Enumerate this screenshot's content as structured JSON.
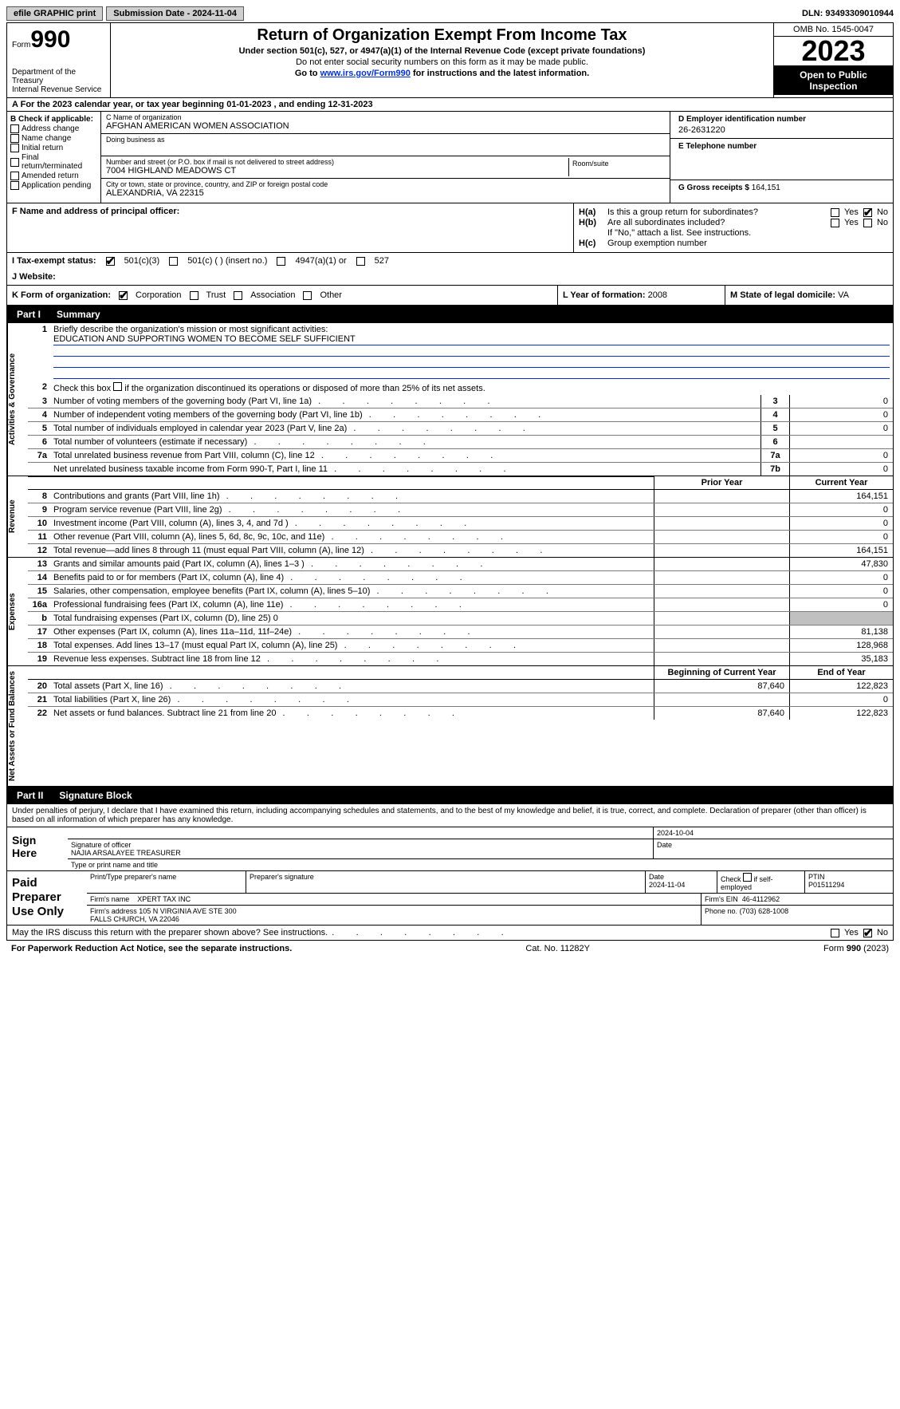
{
  "topbar": {
    "efile": "efile GRAPHIC print",
    "submission": "Submission Date - 2024-11-04",
    "dln": "DLN: 93493309010944"
  },
  "header": {
    "form_label": "Form",
    "form_number": "990",
    "dept": "Department of the Treasury\nInternal Revenue Service",
    "title": "Return of Organization Exempt From Income Tax",
    "sub1": "Under section 501(c), 527, or 4947(a)(1) of the Internal Revenue Code (except private foundations)",
    "sub2": "Do not enter social security numbers on this form as it may be made public.",
    "sub3_pre": "Go to ",
    "sub3_link": "www.irs.gov/Form990",
    "sub3_post": " for instructions and the latest information.",
    "omb": "OMB No. 1545-0047",
    "year": "2023",
    "inspect": "Open to Public Inspection"
  },
  "row_a": "For the 2023 calendar year, or tax year beginning 01-01-2023    , and ending 12-31-2023",
  "box_b": {
    "title": "B Check if applicable:",
    "items": [
      "Address change",
      "Name change",
      "Initial return",
      "Final return/terminated",
      "Amended return",
      "Application pending"
    ]
  },
  "box_c": {
    "name_lbl": "C Name of organization",
    "name": "AFGHAN AMERICAN WOMEN ASSOCIATION",
    "dba_lbl": "Doing business as",
    "dba": "",
    "addr_lbl": "Number and street (or P.O. box if mail is not delivered to street address)",
    "addr": "7004 HIGHLAND MEADOWS CT",
    "room_lbl": "Room/suite",
    "city_lbl": "City or town, state or province, country, and ZIP or foreign postal code",
    "city": "ALEXANDRIA, VA  22315",
    "f_lbl": "F  Name and address of principal officer:",
    "f_val": ""
  },
  "box_d": {
    "ein_lbl": "D Employer identification number",
    "ein": "26-2631220",
    "tel_lbl": "E Telephone number",
    "tel": "",
    "g_lbl": "G Gross receipts $",
    "g_val": "164,151"
  },
  "box_h": {
    "ha_lbl": "H(a)",
    "ha_txt": "Is this a group return for subordinates?",
    "hb_lbl": "H(b)",
    "hb_txt": "Are all subordinates included?",
    "hb_note": "If \"No,\" attach a list. See instructions.",
    "hc_lbl": "H(c)",
    "hc_txt": "Group exemption number",
    "yes": "Yes",
    "no": "No"
  },
  "row_i": {
    "lbl": "I   Tax-exempt status:",
    "opts": [
      "501(c)(3)",
      "501(c) (  ) (insert no.)",
      "4947(a)(1) or",
      "527"
    ]
  },
  "row_j": {
    "lbl": "J   Website:",
    "val": ""
  },
  "row_k": {
    "lbl": "K Form of organization:",
    "opts": [
      "Corporation",
      "Trust",
      "Association",
      "Other"
    ],
    "l_lbl": "L Year of formation:",
    "l_val": "2008",
    "m_lbl": "M State of legal domicile:",
    "m_val": "VA"
  },
  "part1": {
    "num": "Part I",
    "title": "Summary"
  },
  "summary": {
    "mission_lbl": "Briefly describe the organization's mission or most significant activities:",
    "mission": "EDUCATION AND SUPPORTING WOMEN TO BECOME SELF SUFFICIENT",
    "line2": "Check this box       if the organization discontinued its operations or disposed of more than 25% of its net assets.",
    "rows_gov": [
      {
        "n": "3",
        "t": "Number of voting members of the governing body (Part VI, line 1a)",
        "box": "3",
        "v": "0"
      },
      {
        "n": "4",
        "t": "Number of independent voting members of the governing body (Part VI, line 1b)",
        "box": "4",
        "v": "0"
      },
      {
        "n": "5",
        "t": "Total number of individuals employed in calendar year 2023 (Part V, line 2a)",
        "box": "5",
        "v": "0"
      },
      {
        "n": "6",
        "t": "Total number of volunteers (estimate if necessary)",
        "box": "6",
        "v": ""
      },
      {
        "n": "7a",
        "t": "Total unrelated business revenue from Part VIII, column (C), line 12",
        "box": "7a",
        "v": "0"
      },
      {
        "n": "",
        "t": "Net unrelated business taxable income from Form 990-T, Part I, line 11",
        "box": "7b",
        "v": "0"
      }
    ],
    "hdr_prior": "Prior Year",
    "hdr_current": "Current Year",
    "rows_rev": [
      {
        "n": "8",
        "t": "Contributions and grants (Part VIII, line 1h)",
        "p": "",
        "c": "164,151"
      },
      {
        "n": "9",
        "t": "Program service revenue (Part VIII, line 2g)",
        "p": "",
        "c": "0"
      },
      {
        "n": "10",
        "t": "Investment income (Part VIII, column (A), lines 3, 4, and 7d )",
        "p": "",
        "c": "0"
      },
      {
        "n": "11",
        "t": "Other revenue (Part VIII, column (A), lines 5, 6d, 8c, 9c, 10c, and 11e)",
        "p": "",
        "c": "0"
      },
      {
        "n": "12",
        "t": "Total revenue—add lines 8 through 11 (must equal Part VIII, column (A), line 12)",
        "p": "",
        "c": "164,151"
      }
    ],
    "rows_exp": [
      {
        "n": "13",
        "t": "Grants and similar amounts paid (Part IX, column (A), lines 1–3 )",
        "p": "",
        "c": "47,830"
      },
      {
        "n": "14",
        "t": "Benefits paid to or for members (Part IX, column (A), line 4)",
        "p": "",
        "c": "0"
      },
      {
        "n": "15",
        "t": "Salaries, other compensation, employee benefits (Part IX, column (A), lines 5–10)",
        "p": "",
        "c": "0"
      },
      {
        "n": "16a",
        "t": "Professional fundraising fees (Part IX, column (A), line 11e)",
        "p": "",
        "c": "0"
      },
      {
        "n": "b",
        "t": "Total fundraising expenses (Part IX, column (D), line 25) 0",
        "p": "gray",
        "c": "gray"
      },
      {
        "n": "17",
        "t": "Other expenses (Part IX, column (A), lines 11a–11d, 11f–24e)",
        "p": "",
        "c": "81,138"
      },
      {
        "n": "18",
        "t": "Total expenses. Add lines 13–17 (must equal Part IX, column (A), line 25)",
        "p": "",
        "c": "128,968"
      },
      {
        "n": "19",
        "t": "Revenue less expenses. Subtract line 18 from line 12",
        "p": "",
        "c": "35,183"
      }
    ],
    "hdr_begin": "Beginning of Current Year",
    "hdr_end": "End of Year",
    "rows_net": [
      {
        "n": "20",
        "t": "Total assets (Part X, line 16)",
        "p": "87,640",
        "c": "122,823"
      },
      {
        "n": "21",
        "t": "Total liabilities (Part X, line 26)",
        "p": "",
        "c": "0"
      },
      {
        "n": "22",
        "t": "Net assets or fund balances. Subtract line 21 from line 20",
        "p": "87,640",
        "c": "122,823"
      }
    ],
    "vtab_gov": "Activities & Governance",
    "vtab_rev": "Revenue",
    "vtab_exp": "Expenses",
    "vtab_net": "Net Assets or Fund Balances"
  },
  "part2": {
    "num": "Part II",
    "title": "Signature Block"
  },
  "penalties": "Under penalties of perjury, I declare that I have examined this return, including accompanying schedules and statements, and to the best of my knowledge and belief, it is true, correct, and complete. Declaration of preparer (other than officer) is based on all information of which preparer has any knowledge.",
  "sign": {
    "lbl": "Sign Here",
    "sig_lbl": "Signature of officer",
    "name": "NAJIA ARSALAYEE  TREASURER",
    "name_lbl": "Type or print name and title",
    "date_lbl": "Date",
    "date": "2024-10-04"
  },
  "prep": {
    "lbl": "Paid Preparer Use Only",
    "pt_name_lbl": "Print/Type preparer's name",
    "pt_name": "",
    "sig_lbl": "Preparer's signature",
    "date_lbl": "Date",
    "date": "2024-11-04",
    "check_lbl": "Check        if self-employed",
    "ptin_lbl": "PTIN",
    "ptin": "P01511294",
    "firm_name_lbl": "Firm's name",
    "firm_name": "XPERT TAX INC",
    "firm_ein_lbl": "Firm's EIN",
    "firm_ein": "46-4112962",
    "firm_addr_lbl": "Firm's address",
    "firm_addr": "105 N VIRGINIA AVE STE 300\nFALLS CHURCH, VA  22046",
    "phone_lbl": "Phone no.",
    "phone": "(703) 628-1008"
  },
  "may": {
    "txt": "May the IRS discuss this return with the preparer shown above? See instructions.",
    "yes": "Yes",
    "no": "No"
  },
  "footer": {
    "left": "For Paperwork Reduction Act Notice, see the separate instructions.",
    "mid": "Cat. No. 11282Y",
    "right_pre": "Form ",
    "right_num": "990",
    "right_post": " (2023)"
  }
}
